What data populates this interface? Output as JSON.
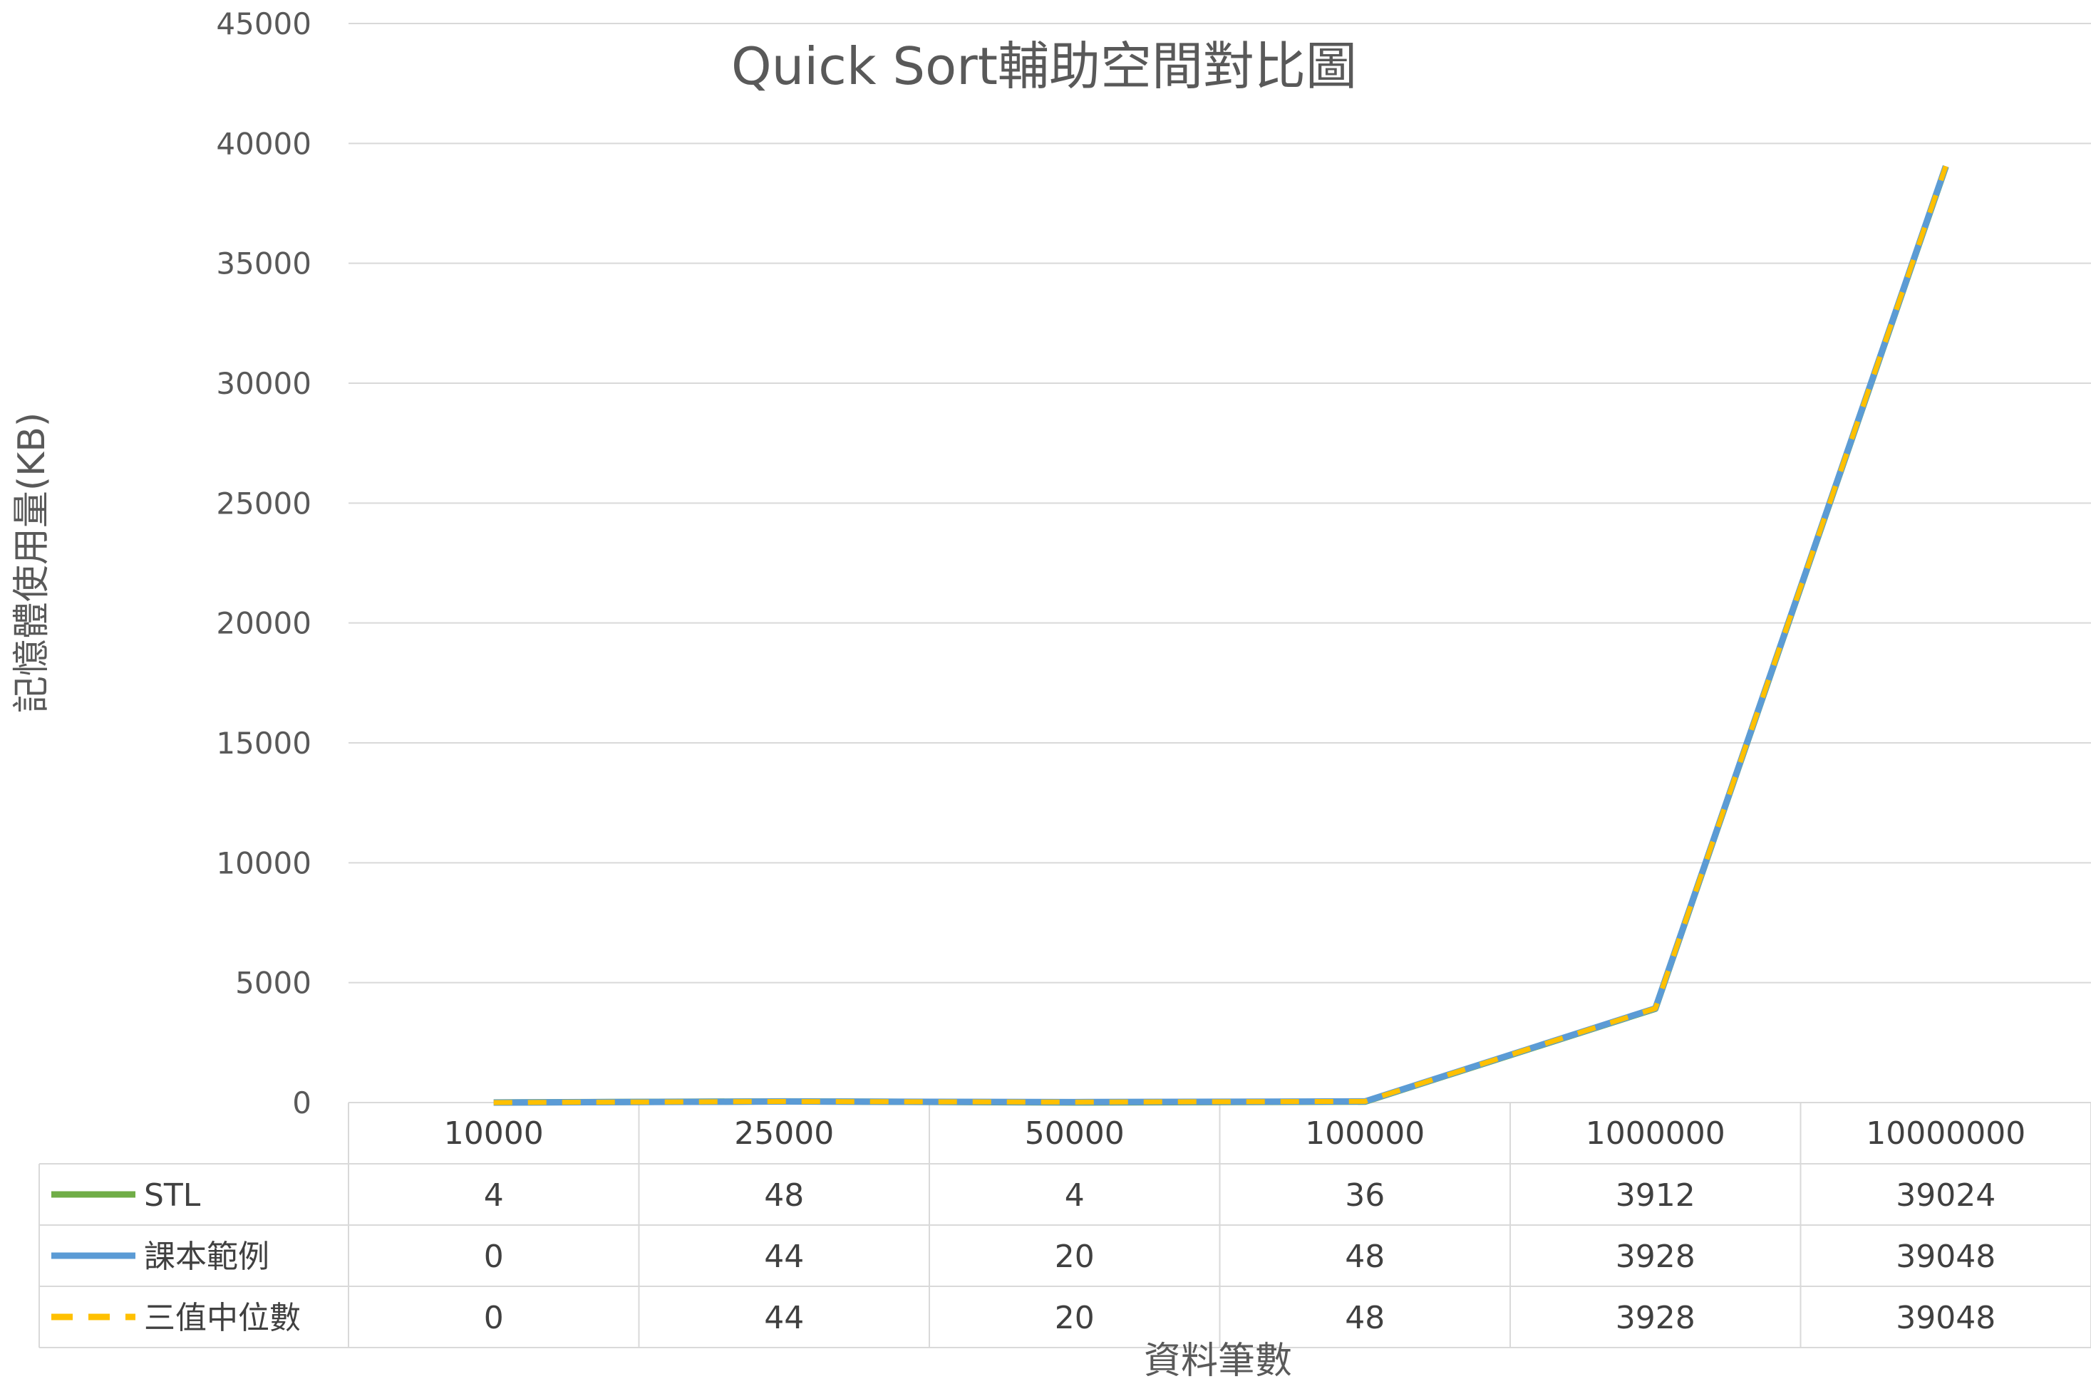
{
  "chart_data": {
    "type": "line",
    "title": "Quick Sort輔助空間對比圖",
    "xlabel": "資料筆數",
    "ylabel": "記憶體使用量(KB)",
    "categories": [
      "10000",
      "25000",
      "50000",
      "100000",
      "1000000",
      "10000000"
    ],
    "ylim": [
      0,
      45000
    ],
    "y_ticks": [
      "0",
      "5000",
      "10000",
      "15000",
      "20000",
      "25000",
      "30000",
      "35000",
      "40000",
      "45000"
    ],
    "grid": true,
    "legend": "data-table",
    "series": [
      {
        "name": "STL",
        "values": [
          4,
          48,
          4,
          36,
          3912,
          39024
        ],
        "color": "#70AD47",
        "dash": "solid"
      },
      {
        "name": "課本範例",
        "values": [
          0,
          44,
          20,
          48,
          3928,
          39048
        ],
        "color": "#5B9BD5",
        "dash": "solid"
      },
      {
        "name": "三值中位數",
        "values": [
          0,
          44,
          20,
          48,
          3928,
          39048
        ],
        "color": "#FFC000",
        "dash": "dashed"
      }
    ]
  }
}
